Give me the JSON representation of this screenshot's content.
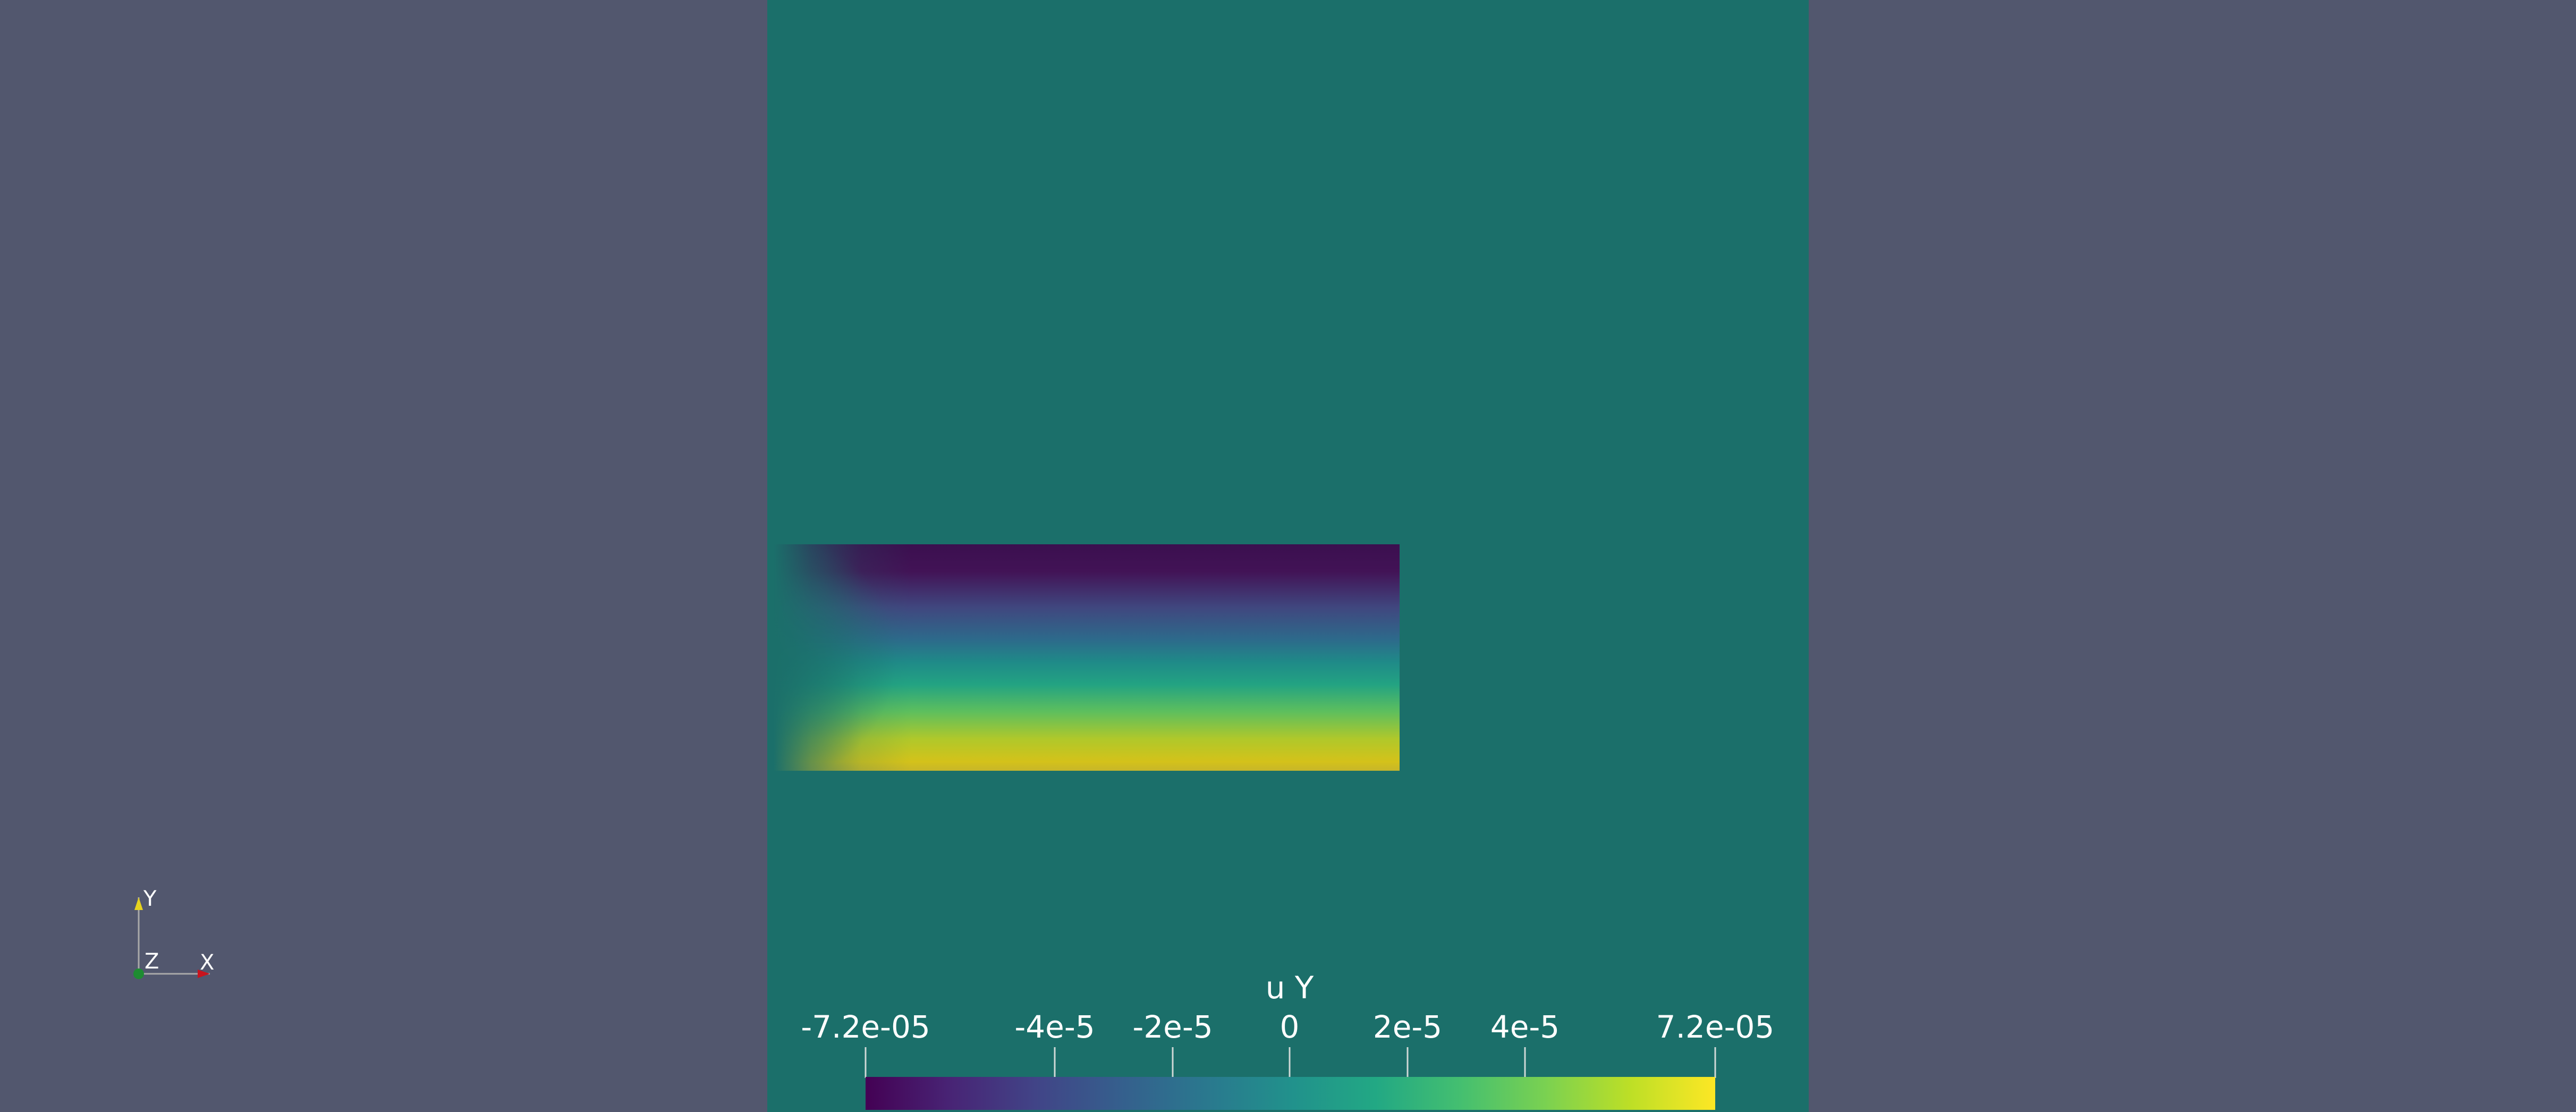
{
  "scalar_bar": {
    "title": "u Y",
    "ticks": [
      {
        "label": "-7.2e-05",
        "value": -7.2e-05
      },
      {
        "label": "-4e-5",
        "value": -4e-05
      },
      {
        "label": "-2e-5",
        "value": -2e-05
      },
      {
        "label": "0",
        "value": 0
      },
      {
        "label": "2e-5",
        "value": 2e-05
      },
      {
        "label": "4e-5",
        "value": 4e-05
      },
      {
        "label": "7.2e-05",
        "value": 7.2e-05
      }
    ],
    "range": [
      -7.2e-05,
      7.2e-05
    ],
    "colormap": "viridis"
  },
  "orientation_axes": {
    "y_label": "Y",
    "z_label": "Z",
    "x_label": "X",
    "y_color": "#e6d21e",
    "x_color": "#c8141e",
    "z_color": "#1e8c32"
  },
  "colors": {
    "background": "#52576e",
    "domain": "#1b6f6a"
  }
}
